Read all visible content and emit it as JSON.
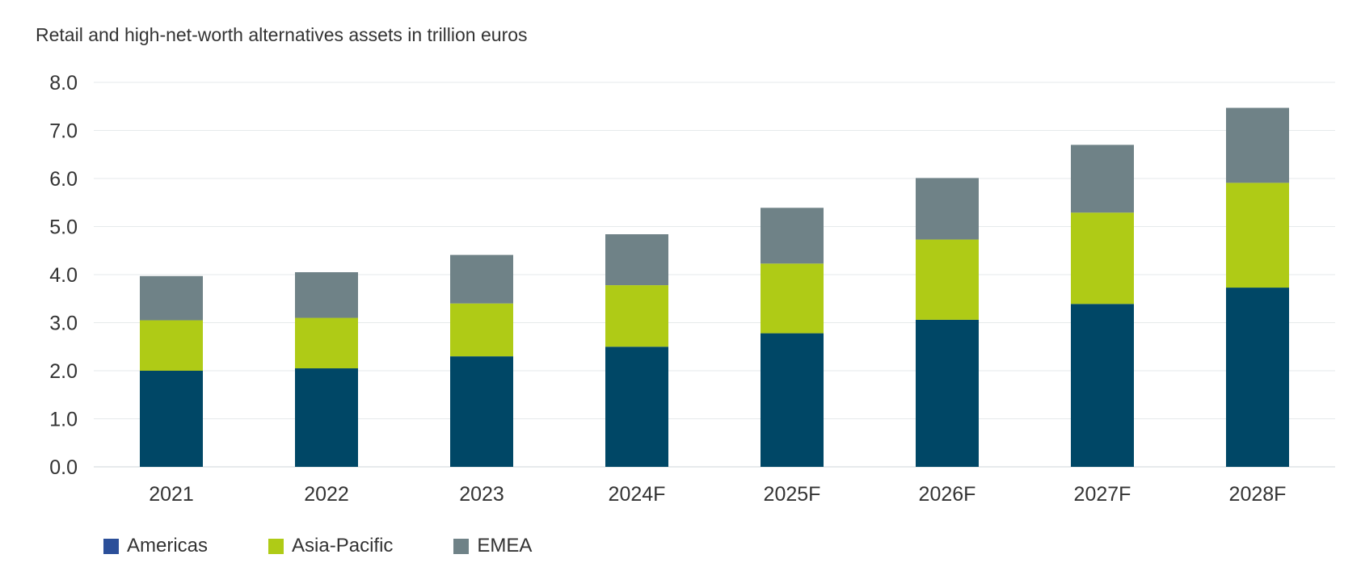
{
  "chart_data": {
    "type": "bar",
    "stacked": true,
    "title": "Retail and high-net-worth alternatives assets in trillion euros",
    "categories": [
      "2021",
      "2022",
      "2023",
      "2024F",
      "2025F",
      "2026F",
      "2027F",
      "2028F"
    ],
    "series": [
      {
        "name": "Americas",
        "color": "#004766",
        "legend_color": "#2b4f99",
        "values": [
          2.0,
          2.05,
          2.3,
          2.5,
          2.78,
          3.06,
          3.39,
          3.73
        ]
      },
      {
        "name": "Asia-Pacific",
        "color": "#afcb16",
        "legend_color": "#afcb16",
        "values": [
          1.05,
          1.05,
          1.1,
          1.28,
          1.45,
          1.67,
          1.9,
          2.18
        ]
      },
      {
        "name": "EMEA",
        "color": "#6f8287",
        "legend_color": "#6f8287",
        "values": [
          0.92,
          0.95,
          1.01,
          1.06,
          1.16,
          1.28,
          1.41,
          1.56
        ]
      }
    ],
    "yticks": [
      "0.0",
      "1.0",
      "2.0",
      "3.0",
      "4.0",
      "5.0",
      "6.0",
      "7.0",
      "8.0"
    ],
    "ylim": [
      0,
      8
    ],
    "xlabel": "",
    "ylabel": "",
    "grid": true,
    "legend_position": "bottom-left"
  }
}
